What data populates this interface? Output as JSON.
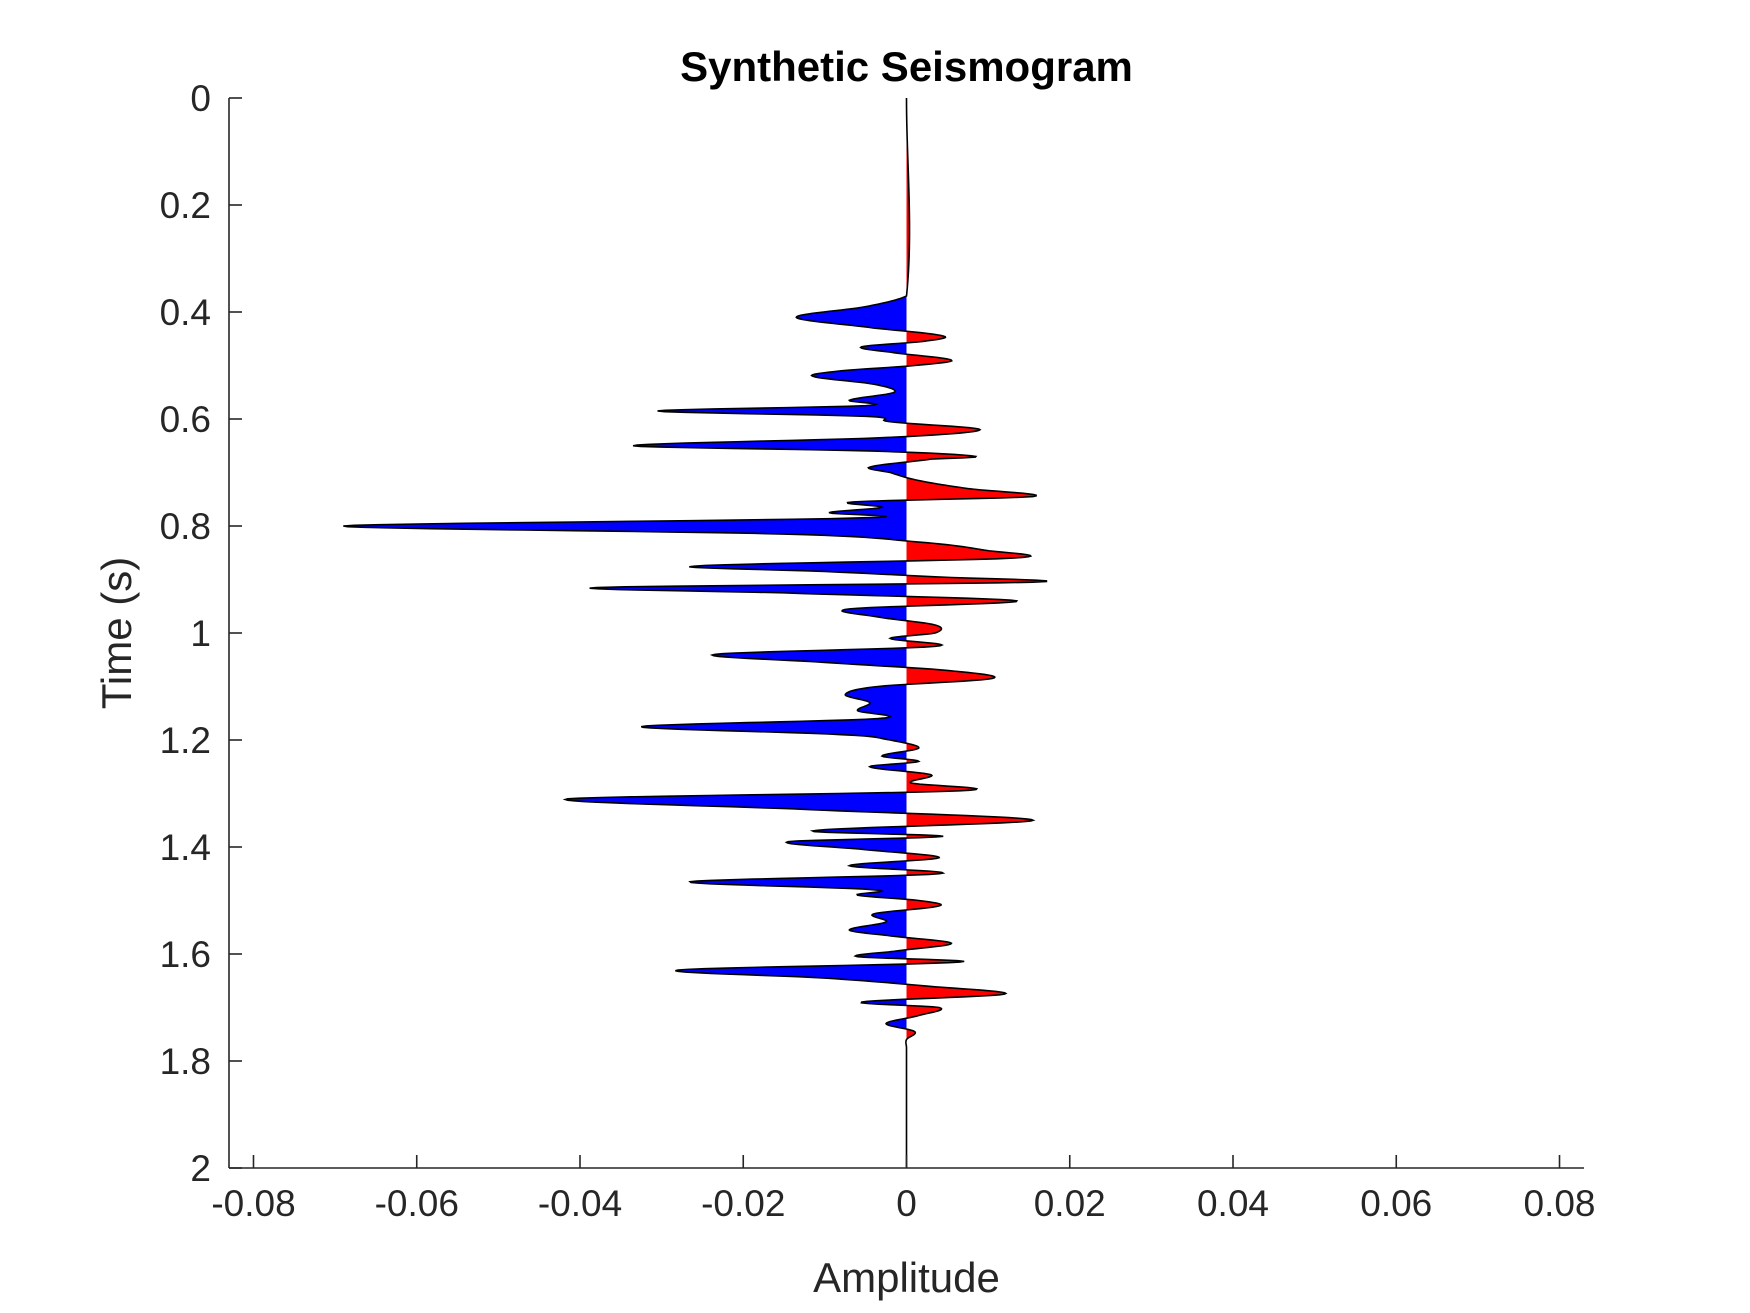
{
  "chart_data": {
    "type": "area",
    "title": "Synthetic Seismogram",
    "xlabel": "Amplitude",
    "ylabel": "Time (s)",
    "xlim": [
      -0.083,
      0.083
    ],
    "ylim": [
      0,
      2
    ],
    "y_reversed": true,
    "xticks": [
      -0.08,
      -0.06,
      -0.04,
      -0.02,
      0,
      0.02,
      0.04,
      0.06,
      0.08
    ],
    "xtick_labels": [
      "-0.08",
      "-0.06",
      "-0.04",
      "-0.02",
      "0",
      "0.02",
      "0.04",
      "0.06",
      "0.08"
    ],
    "yticks": [
      0,
      0.2,
      0.4,
      0.6,
      0.8,
      1,
      1.2,
      1.4,
      1.6,
      1.8,
      2
    ],
    "ytick_labels": [
      "0",
      "0.2",
      "0.4",
      "0.6",
      "0.8",
      "1",
      "1.2",
      "1.4",
      "1.6",
      "1.8",
      "2"
    ],
    "grid": false,
    "colors": {
      "positive_fill": "#ff0000",
      "negative_fill": "#0000ff",
      "trace_line": "#000000",
      "axis": "#262626"
    },
    "trace": {
      "time": [
        0,
        0.37,
        0.39,
        0.41,
        0.43,
        0.445,
        0.455,
        0.465,
        0.475,
        0.49,
        0.5,
        0.51,
        0.52,
        0.535,
        0.55,
        0.565,
        0.575,
        0.585,
        0.595,
        0.605,
        0.62,
        0.635,
        0.65,
        0.66,
        0.67,
        0.675,
        0.69,
        0.7,
        0.715,
        0.73,
        0.745,
        0.755,
        0.765,
        0.775,
        0.785,
        0.8,
        0.815,
        0.83,
        0.845,
        0.86,
        0.875,
        0.885,
        0.895,
        0.905,
        0.915,
        0.925,
        0.94,
        0.955,
        0.97,
        0.985,
        1.0,
        1.01,
        1.025,
        1.04,
        1.055,
        1.07,
        1.085,
        1.1,
        1.115,
        1.13,
        1.145,
        1.16,
        1.175,
        1.19,
        1.2,
        1.215,
        1.23,
        1.24,
        1.25,
        1.265,
        1.28,
        1.295,
        1.31,
        1.33,
        1.35,
        1.37,
        1.38,
        1.39,
        1.405,
        1.42,
        1.435,
        1.45,
        1.465,
        1.48,
        1.49,
        1.5,
        1.51,
        1.525,
        1.54,
        1.555,
        1.565,
        1.58,
        1.595,
        1.605,
        1.615,
        1.63,
        1.645,
        1.66,
        1.675,
        1.69,
        1.7,
        1.715,
        1.73,
        1.745,
        1.76,
        1.775,
        1.79,
        1.805,
        1.82,
        1.84,
        1.855,
        1.87,
        1.885,
        1.9,
        1.91,
        1.925,
        1.94,
        1.955,
        1.965,
        1.975,
        1.985,
        2.0
      ],
      "amplitude": [
        0,
        0,
        -0.005,
        -0.0135,
        -0.004,
        0.0045,
        0.002,
        -0.0055,
        -0.002,
        0.0055,
        0.001,
        -0.008,
        -0.0115,
        -0.004,
        -0.0015,
        -0.007,
        -0.005,
        -0.0305,
        -0.005,
        -0.002,
        0.009,
        -0.003,
        -0.0335,
        -0.004,
        0.0085,
        0.003,
        -0.0045,
        -0.002,
        0.0015,
        0.0075,
        0.0155,
        -0.0065,
        -0.003,
        -0.0095,
        -0.006,
        -0.069,
        -0.015,
        0.0015,
        0.0095,
        0.013,
        -0.026,
        -0.01,
        0.0035,
        0.0155,
        -0.038,
        -0.015,
        0.0135,
        -0.007,
        -0.0035,
        0.0035,
        0.0035,
        -0.002,
        0.0035,
        -0.0235,
        -0.01,
        0.005,
        0.0105,
        -0.0035,
        -0.0075,
        -0.0045,
        -0.006,
        -0.0035,
        -0.0325,
        -0.008,
        -0.002,
        0.0015,
        -0.003,
        0.0015,
        -0.0045,
        0.003,
        0.0005,
        0.0065,
        -0.0415,
        -0.012,
        0.0155,
        -0.0115,
        0.0045,
        -0.0145,
        -0.005,
        0.004,
        -0.007,
        0.004,
        -0.0265,
        -0.004,
        -0.006,
        0.0015,
        0.004,
        -0.004,
        -0.0025,
        -0.007,
        -0.0025,
        0.0055,
        -0.0015,
        -0.006,
        0.0065,
        -0.028,
        -0.01,
        0.0025,
        0.012,
        -0.0055,
        0.004,
        0.0015,
        -0.0025,
        0.001,
        0.0,
        0.0,
        0.0,
        0.0,
        0.0,
        0.0,
        0.0,
        0.0,
        0.0,
        0.0,
        0.0,
        0.0,
        0.0,
        0.0,
        0.0,
        0.0,
        0.0,
        0.0
      ]
    }
  }
}
